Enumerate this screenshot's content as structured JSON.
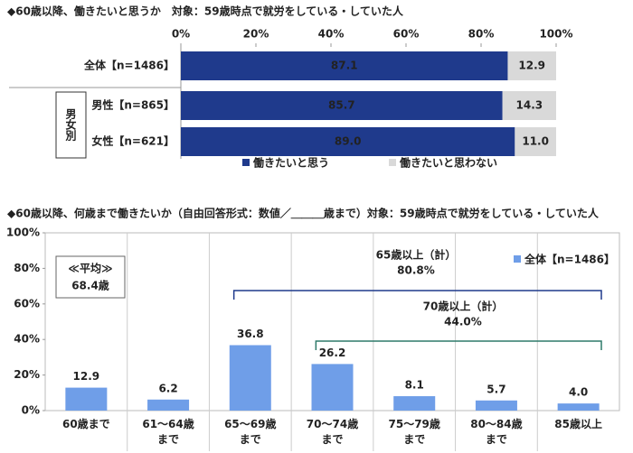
{
  "chart_data": [
    {
      "type": "stacked-hbar",
      "title": "◆60歳以降、働きたいと思うか　対象：59歳時点で就労をしている・していた人",
      "categories": [
        "全体【n=1486】",
        "男性【n=865】",
        "女性【n=621】"
      ],
      "group_label": "男女別",
      "series": [
        {
          "name": "働きたいと思う",
          "color": "#1f3a8c",
          "values": [
            87.1,
            85.7,
            89.0
          ],
          "value_labels": [
            "87.1",
            "85.7",
            "89.0"
          ]
        },
        {
          "name": "働きたいと思わない",
          "color": "#d9d9d9",
          "values": [
            12.9,
            14.3,
            11.0
          ],
          "value_labels": [
            "12.9",
            "14.3",
            "11.0"
          ]
        }
      ],
      "xlim": [
        0,
        100
      ],
      "xticks": [
        {
          "value": 0,
          "label": "0%"
        },
        {
          "value": 20,
          "label": "20%"
        },
        {
          "value": 40,
          "label": "40%"
        },
        {
          "value": 60,
          "label": "60%"
        },
        {
          "value": 80,
          "label": "80%"
        },
        {
          "value": 100,
          "label": "100%"
        }
      ]
    },
    {
      "type": "bar",
      "title": "◆60歳以降、何歳まで働きたいか（自由回答形式：数値／＿＿＿歳まで）対象：59歳時点で就労をしている・していた人",
      "categories": [
        "60歳まで",
        "61～64歳まで",
        "65～69歳まで",
        "70～74歳まで",
        "75～79歳まで",
        "80～84歳まで",
        "85歳以上"
      ],
      "series": [
        {
          "name": "全体【n=1486】",
          "color": "#6f9ee8",
          "values": [
            12.9,
            6.2,
            36.8,
            26.2,
            8.1,
            5.7,
            4.0
          ],
          "value_labels": [
            "12.9",
            "6.2",
            "36.8",
            "26.2",
            "8.1",
            "5.7",
            "4.0"
          ]
        }
      ],
      "ylim": [
        0,
        100
      ],
      "yticks": [
        {
          "value": 0,
          "label": "0%"
        },
        {
          "value": 20,
          "label": "20%"
        },
        {
          "value": 40,
          "label": "40%"
        },
        {
          "value": 60,
          "label": "60%"
        },
        {
          "value": 80,
          "label": "80%"
        },
        {
          "value": 100,
          "label": "100%"
        }
      ],
      "average": {
        "label": "≪平均≫",
        "value_label": "68.4歳"
      },
      "annotations": [
        {
          "label": "65歳以上（計）",
          "value_label": "80.8%"
        },
        {
          "label": "70歳以上（計）",
          "value_label": "44.0%"
        }
      ]
    }
  ]
}
